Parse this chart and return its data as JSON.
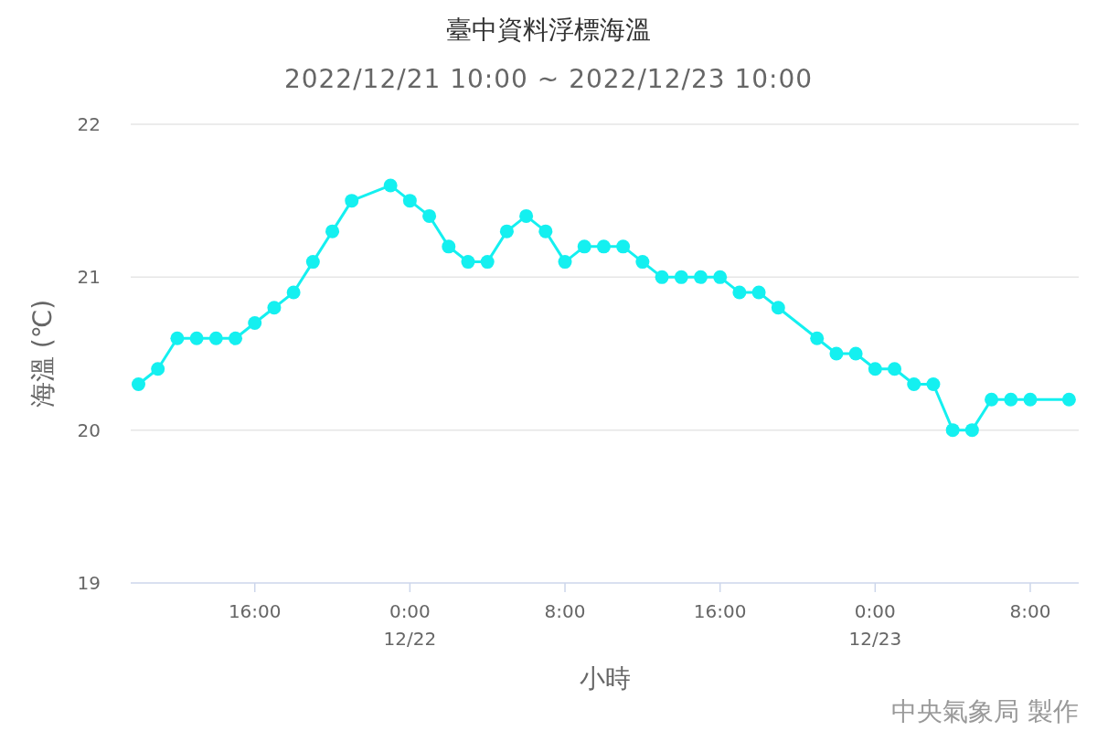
{
  "chart_data": {
    "type": "line",
    "title": "臺中資料浮標海溫",
    "subtitle": "2022/12/21 10:00 ~ 2022/12/23 10:00",
    "xlabel": "小時",
    "ylabel": "海溫 (℃)",
    "annotations": [
      "中央氣象局 製作"
    ],
    "x": [
      "2022-12-21T10:00",
      "2022-12-21T11:00",
      "2022-12-21T12:00",
      "2022-12-21T13:00",
      "2022-12-21T14:00",
      "2022-12-21T15:00",
      "2022-12-21T16:00",
      "2022-12-21T17:00",
      "2022-12-21T18:00",
      "2022-12-21T19:00",
      "2022-12-21T20:00",
      "2022-12-21T21:00",
      "2022-12-21T23:00",
      "2022-12-22T00:00",
      "2022-12-22T01:00",
      "2022-12-22T02:00",
      "2022-12-22T03:00",
      "2022-12-22T04:00",
      "2022-12-22T05:00",
      "2022-12-22T06:00",
      "2022-12-22T07:00",
      "2022-12-22T08:00",
      "2022-12-22T09:00",
      "2022-12-22T10:00",
      "2022-12-22T11:00",
      "2022-12-22T12:00",
      "2022-12-22T13:00",
      "2022-12-22T14:00",
      "2022-12-22T15:00",
      "2022-12-22T16:00",
      "2022-12-22T17:00",
      "2022-12-22T18:00",
      "2022-12-22T19:00",
      "2022-12-22T21:00",
      "2022-12-22T22:00",
      "2022-12-22T23:00",
      "2022-12-23T00:00",
      "2022-12-23T01:00",
      "2022-12-23T02:00",
      "2022-12-23T03:00",
      "2022-12-23T04:00",
      "2022-12-23T05:00",
      "2022-12-23T06:00",
      "2022-12-23T07:00",
      "2022-12-23T08:00",
      "2022-12-23T10:00"
    ],
    "values": [
      20.3,
      20.4,
      20.6,
      20.6,
      20.6,
      20.6,
      20.7,
      20.8,
      20.9,
      21.1,
      21.3,
      21.5,
      21.6,
      21.5,
      21.4,
      21.2,
      21.1,
      21.1,
      21.3,
      21.4,
      21.3,
      21.1,
      21.2,
      21.2,
      21.2,
      21.1,
      21.0,
      21.0,
      21.0,
      21.0,
      20.9,
      20.9,
      20.8,
      20.6,
      20.5,
      20.5,
      20.4,
      20.4,
      20.3,
      20.3,
      20.0,
      20.0,
      20.2,
      20.2,
      20.2,
      20.2
    ],
    "color": "#14f0f0",
    "marker": "circle",
    "grid": "y",
    "xlim": [
      "2022-12-21T09:36",
      "2022-12-23T10:30"
    ],
    "xticks": [
      {
        "value": "2022-12-21T16:00",
        "label": "16:00"
      },
      {
        "value": "2022-12-22T00:00",
        "label": "0:00\n12/22"
      },
      {
        "value": "2022-12-22T08:00",
        "label": "8:00"
      },
      {
        "value": "2022-12-22T16:00",
        "label": "16:00"
      },
      {
        "value": "2022-12-23T00:00",
        "label": "0:00\n12/23"
      },
      {
        "value": "2022-12-23T08:00",
        "label": "8:00"
      }
    ],
    "ylim": [
      19,
      22
    ],
    "yticks": [
      19,
      20,
      21,
      22
    ]
  }
}
